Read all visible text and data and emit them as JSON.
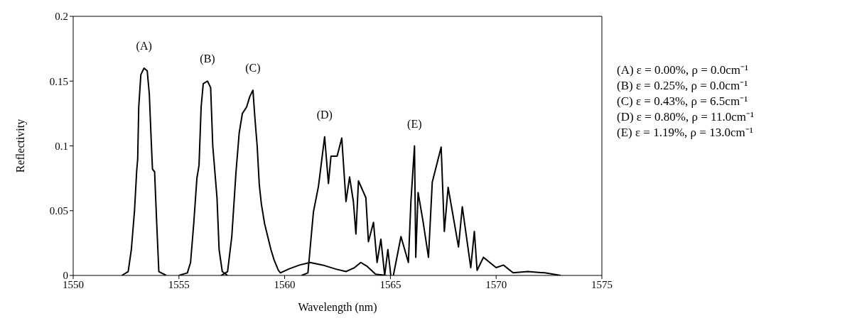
{
  "chart_data": {
    "type": "line",
    "xlabel": "Wavelength (nm)",
    "ylabel": "Reflectivity",
    "xlim": [
      1550,
      1575
    ],
    "xticks": [
      1550,
      1555,
      1560,
      1565,
      1570,
      1575
    ],
    "ylim": [
      0,
      0.2
    ],
    "yticks": [
      0,
      0.05,
      0.1,
      0.15,
      0.2
    ],
    "grid": false,
    "legend": false,
    "marker": "none",
    "line_style": "solid",
    "annotations": [
      "(A) ε = 0.00%,  ρ = 0.0cm⁻¹",
      "(B) ε = 0.25%,  ρ = 0.0cm⁻¹",
      "(C) ε = 0.43%,  ρ = 6.5cm⁻¹",
      "(D) ε = 0.80%,  ρ = 11.0cm⁻¹",
      "(E) ε = 1.19%,  ρ = 13.0cm⁻¹"
    ],
    "series": [
      {
        "name": "(A)",
        "color": "#000000",
        "x": [
          1552.3,
          1552.6,
          1552.75,
          1552.9,
          1553.0,
          1553.05,
          1553.1,
          1553.2,
          1553.35,
          1553.5,
          1553.6,
          1553.7,
          1553.75,
          1553.85,
          1553.95,
          1554.05,
          1554.4
        ],
        "values": [
          0,
          0.003,
          0.02,
          0.05,
          0.08,
          0.09,
          0.13,
          0.155,
          0.16,
          0.158,
          0.14,
          0.1,
          0.082,
          0.08,
          0.04,
          0.003,
          0
        ]
      },
      {
        "name": "(B)",
        "color": "#000000",
        "x": [
          1555.0,
          1555.4,
          1555.55,
          1555.7,
          1555.85,
          1555.95,
          1556.05,
          1556.15,
          1556.35,
          1556.5,
          1556.6,
          1556.7,
          1556.8,
          1556.9,
          1557.05,
          1557.3
        ],
        "values": [
          0,
          0.002,
          0.01,
          0.04,
          0.075,
          0.085,
          0.13,
          0.148,
          0.15,
          0.145,
          0.1,
          0.08,
          0.06,
          0.02,
          0.003,
          0
        ]
      },
      {
        "name": "(C)",
        "color": "#000000",
        "x": [
          1557.0,
          1557.3,
          1557.5,
          1557.7,
          1557.85,
          1558.0,
          1558.2,
          1558.35,
          1558.5,
          1558.6,
          1558.7,
          1558.8,
          1558.9,
          1559.05,
          1559.2,
          1559.35,
          1559.5,
          1559.7,
          1559.8,
          1560.2,
          1560.7,
          1561.2,
          1561.8,
          1562.4,
          1562.9,
          1563.3,
          1563.6,
          1563.9,
          1564.3,
          1564.8
        ],
        "values": [
          0,
          0.003,
          0.03,
          0.08,
          0.11,
          0.125,
          0.13,
          0.138,
          0.143,
          0.12,
          0.1,
          0.07,
          0.055,
          0.04,
          0.03,
          0.02,
          0.012,
          0.004,
          0.002,
          0.005,
          0.008,
          0.01,
          0.008,
          0.005,
          0.003,
          0.006,
          0.01,
          0.007,
          0.001,
          0
        ]
      },
      {
        "name": "(D)",
        "color": "#000000",
        "x": [
          1560.8,
          1561.1,
          1561.36,
          1561.6,
          1561.89,
          1562.07,
          1562.19,
          1562.48,
          1562.7,
          1562.9,
          1563.07,
          1563.25,
          1563.37,
          1563.49,
          1563.84,
          1563.96,
          1564.2,
          1564.37,
          1564.55,
          1564.73,
          1564.88,
          1565.02
        ],
        "values": [
          0,
          0.002,
          0.049,
          0.069,
          0.107,
          0.071,
          0.092,
          0.092,
          0.106,
          0.057,
          0.076,
          0.057,
          0.032,
          0.073,
          0.06,
          0.026,
          0.041,
          0.01,
          0.028,
          0,
          0.02,
          0
        ]
      },
      {
        "name": "(E)",
        "color": "#000000",
        "x": [
          1565.14,
          1565.5,
          1565.85,
          1565.97,
          1566.14,
          1566.2,
          1566.31,
          1566.55,
          1566.8,
          1566.98,
          1567.4,
          1567.55,
          1567.73,
          1568.22,
          1568.4,
          1568.8,
          1568.97,
          1569.1,
          1569.4,
          1570.0,
          1570.35,
          1570.8,
          1571.5,
          1572.3,
          1573.05
        ],
        "values": [
          0,
          0.03,
          0.01,
          0.057,
          0.1,
          0.014,
          0.064,
          0.041,
          0.014,
          0.072,
          0.099,
          0.034,
          0.068,
          0.022,
          0.053,
          0.006,
          0.034,
          0.004,
          0.014,
          0.006,
          0.008,
          0.002,
          0.003,
          0.002,
          0
        ]
      }
    ]
  }
}
